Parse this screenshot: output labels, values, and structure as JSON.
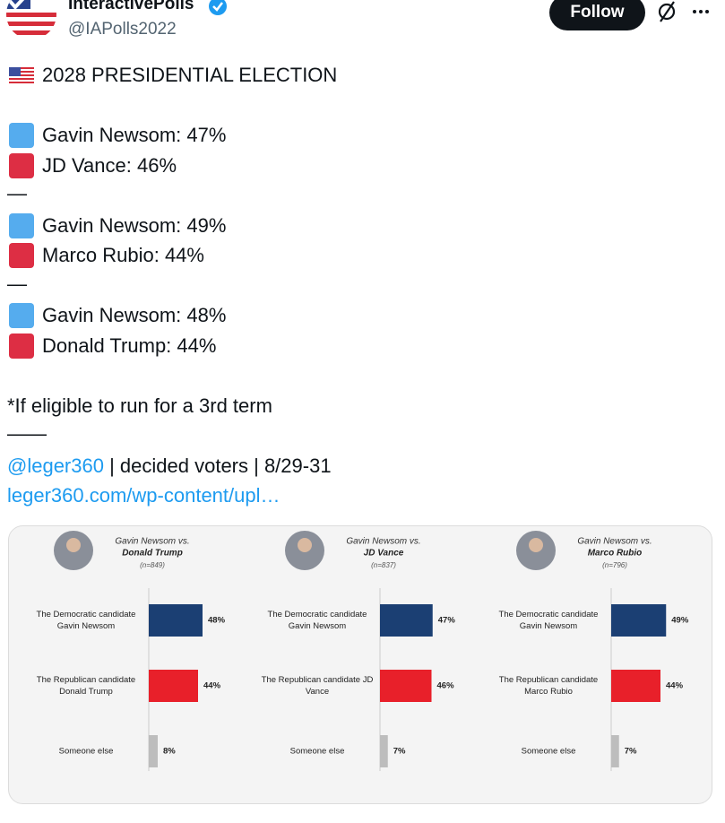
{
  "author": {
    "name": "InteractivePolls",
    "handle": "@IAPolls2022"
  },
  "follow_button": "Follow",
  "tweet": {
    "title": "2028 PRESIDENTIAL ELECTION",
    "matchups": [
      [
        "Gavin Newsom: 47%",
        "JD Vance: 46%"
      ],
      [
        "Gavin Newsom: 49%",
        "Marco Rubio: 44%"
      ],
      [
        "Gavin Newsom: 48%",
        "Donald Trump: 44%"
      ]
    ],
    "separator": "—",
    "note": "*If eligible to run for a 3rd term",
    "rule": "——",
    "mention": "@leger360",
    "source_text": "| decided voters | 8/29-31",
    "link": "leger360.com/wp-content/upl…"
  },
  "image": {
    "colors": [
      "#1b3f73",
      "#e8202a",
      "#bdbdbd"
    ],
    "panels": [
      {
        "heading": "Gavin Newsom vs.",
        "opponent": "Donald Trump",
        "sample": "(n=849)",
        "categories": [
          [
            "The Democratic candidate",
            "Gavin Newsom"
          ],
          [
            "The Republican candidate",
            "Donald Trump"
          ],
          [
            "Someone else"
          ]
        ],
        "values": [
          48,
          44,
          8
        ],
        "value_labels": [
          "48%",
          "44%",
          "8%"
        ]
      },
      {
        "heading": "Gavin Newsom vs.",
        "opponent": "JD Vance",
        "sample": "(n=837)",
        "categories": [
          [
            "The Democratic candidate",
            "Gavin Newsom"
          ],
          [
            "The Republican candidate JD",
            "Vance"
          ],
          [
            "Someone else"
          ]
        ],
        "values": [
          47,
          46,
          7
        ],
        "value_labels": [
          "47%",
          "46%",
          "7%"
        ]
      },
      {
        "heading": "Gavin Newsom vs.",
        "opponent": "Marco Rubio",
        "sample": "(n=796)",
        "categories": [
          [
            "The Democratic candidate",
            "Gavin Newsom"
          ],
          [
            "The Republican candidate",
            "Marco Rubio"
          ],
          [
            "Someone else"
          ]
        ],
        "values": [
          49,
          44,
          7
        ],
        "value_labels": [
          "49%",
          "44%",
          "7%"
        ]
      }
    ]
  }
}
